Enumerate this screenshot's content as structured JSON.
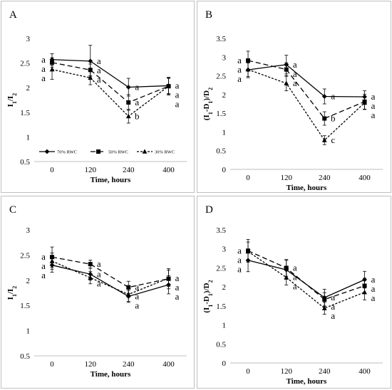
{
  "chart_data": [
    {
      "type": "line",
      "panel_label": "A",
      "x": [
        0,
        120,
        240,
        400
      ],
      "xticks": [
        "0",
        "120",
        "240",
        "400"
      ],
      "xlabel": "Time, hours",
      "ylabel_main": "I",
      "ylabel_sub1": "1",
      "ylabel_mid": "/I",
      "ylabel_sub2": "2",
      "ylim": [
        0.5,
        3
      ],
      "yticks": [
        "0.5",
        "1",
        "1.5",
        "2",
        "2.5",
        "3"
      ],
      "grid": "none",
      "legend_position": "lower-left",
      "legend": [
        "70% RWC",
        "50% RWC",
        "30% RWC"
      ],
      "series": [
        {
          "name": "70% RWC",
          "values": [
            2.57,
            2.54,
            2.01,
            2.04
          ],
          "err": [
            0.12,
            0.32,
            0.18,
            0.16
          ],
          "letters": [
            "a",
            "a",
            "a",
            "a"
          ]
        },
        {
          "name": "50% RWC",
          "values": [
            2.51,
            2.36,
            1.7,
            2.03
          ],
          "err": [
            0.1,
            0.12,
            0.16,
            0.18
          ],
          "letters": [
            "a",
            "a",
            "a",
            "a"
          ]
        },
        {
          "name": "30% RWC",
          "values": [
            2.37,
            2.2,
            1.42,
            2.03
          ],
          "err": [
            0.2,
            0.14,
            0.14,
            0.16
          ],
          "letters": [
            "a",
            "a",
            "b",
            "a"
          ]
        }
      ]
    },
    {
      "type": "line",
      "panel_label": "B",
      "x": [
        0,
        120,
        240,
        400
      ],
      "xticks": [
        "0",
        "120",
        "240",
        "400"
      ],
      "xlabel": "Time, hours",
      "ylabel_main": "(I",
      "ylabel_sub1": "1",
      "ylabel_mid": "-D",
      "ylabel_sub2": "1",
      "ylabel_tail": ")/D",
      "ylabel_sub3": "2",
      "ylim": [
        0,
        3.5
      ],
      "yticks": [
        "0",
        "0.5",
        "1",
        "1.5",
        "2",
        "2.5",
        "3",
        "3.5"
      ],
      "grid": "none",
      "series": [
        {
          "name": "70% RWC",
          "values": [
            2.66,
            2.8,
            1.95,
            1.94
          ],
          "err": [
            0.18,
            0.25,
            0.2,
            0.16
          ],
          "letters": [
            "a",
            "a",
            "a",
            "a"
          ]
        },
        {
          "name": "50% RWC",
          "values": [
            2.91,
            2.67,
            1.36,
            1.81
          ],
          "err": [
            0.25,
            0.18,
            0.18,
            0.2
          ],
          "letters": [
            "a",
            "a",
            "b",
            "a"
          ]
        },
        {
          "name": "30% RWC",
          "values": [
            2.67,
            2.3,
            0.78,
            1.78
          ],
          "err": [
            0.22,
            0.2,
            0.12,
            0.18
          ],
          "letters": [
            "a",
            "a",
            "c",
            "a"
          ]
        }
      ]
    },
    {
      "type": "line",
      "panel_label": "C",
      "x": [
        0,
        120,
        240,
        400
      ],
      "xticks": [
        "0",
        "120",
        "240",
        "400"
      ],
      "xlabel": "Time, hours",
      "ylabel_main": "I",
      "ylabel_sub1": "1",
      "ylabel_mid": "/I",
      "ylabel_sub2": "2",
      "ylim": [
        0.5,
        3
      ],
      "yticks": [
        "0.5",
        "1",
        "1.5",
        "2",
        "2.5",
        "3"
      ],
      "grid": "none",
      "series": [
        {
          "name": "70% RWC",
          "values": [
            2.3,
            2.12,
            1.68,
            1.91
          ],
          "err": [
            0.14,
            0.12,
            0.12,
            0.18
          ],
          "letters": [
            "a",
            "a",
            "a",
            "a"
          ]
        },
        {
          "name": "50% RWC",
          "values": [
            2.46,
            2.32,
            1.86,
            2.03
          ],
          "err": [
            0.2,
            0.08,
            0.12,
            0.2
          ],
          "letters": [
            "a",
            "a",
            "a",
            "a"
          ]
        },
        {
          "name": "30% RWC",
          "values": [
            2.38,
            2.05,
            1.72,
            2.04
          ],
          "err": [
            0.16,
            0.12,
            0.14,
            0.16
          ],
          "letters": [
            "a",
            "a",
            "a",
            "a"
          ]
        }
      ]
    },
    {
      "type": "line",
      "panel_label": "D",
      "x": [
        0,
        120,
        240,
        400
      ],
      "xticks": [
        "0",
        "120",
        "240",
        "400"
      ],
      "xlabel": "Time, hours",
      "ylabel_main": "(I",
      "ylabel_sub1": "1",
      "ylabel_mid": "-D",
      "ylabel_sub2": "1",
      "ylabel_tail": ")/D",
      "ylabel_sub3": "2",
      "ylim": [
        0,
        3.5
      ],
      "yticks": [
        "0",
        "0.5",
        "1",
        "1.5",
        "2",
        "2.5",
        "3",
        "3.5"
      ],
      "grid": "none",
      "series": [
        {
          "name": "70% RWC",
          "values": [
            2.7,
            2.45,
            1.72,
            2.19
          ],
          "err": [
            0.3,
            0.25,
            0.22,
            0.22
          ],
          "letters": [
            "a",
            "a",
            "a",
            "a"
          ]
        },
        {
          "name": "50% RWC",
          "values": [
            2.95,
            2.5,
            1.67,
            2.03
          ],
          "err": [
            0.3,
            0.22,
            0.18,
            0.2
          ],
          "letters": [
            "a",
            "a",
            "a",
            "a"
          ]
        },
        {
          "name": "30% RWC",
          "values": [
            2.93,
            2.25,
            1.44,
            1.86
          ],
          "err": [
            0.25,
            0.2,
            0.16,
            0.2
          ],
          "letters": [
            "a",
            "a",
            "a",
            "a"
          ]
        }
      ]
    }
  ]
}
